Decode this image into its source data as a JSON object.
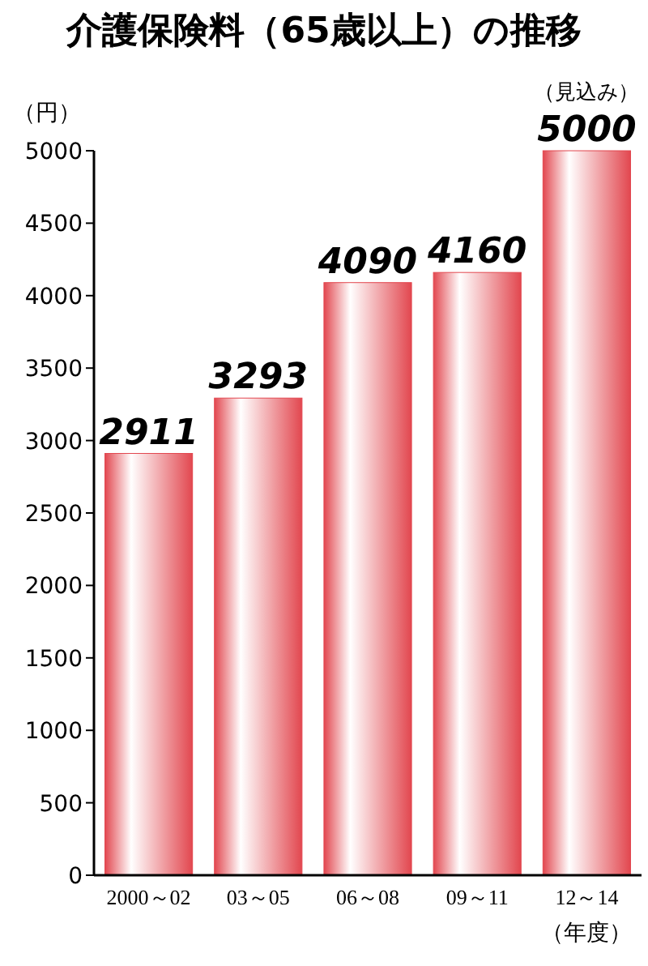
{
  "chart_data": {
    "type": "bar",
    "title": "介護保険料（65歳以上）の推移",
    "ylabel": "（円）",
    "xlabel": "（年度）",
    "annotations": [
      {
        "text": "（見込み）",
        "x": "12～14",
        "y": 5000
      }
    ],
    "categories": [
      "2000～02",
      "03～05",
      "06～08",
      "09～11",
      "12～14"
    ],
    "values": [
      2911,
      3293,
      4090,
      4160,
      5000
    ],
    "color": "#e2474f",
    "ylim": [
      0,
      5000
    ],
    "yticks": [
      0,
      500,
      1000,
      1500,
      2000,
      2500,
      3000,
      3500,
      4000,
      4500,
      5000
    ],
    "data_labels": true,
    "grid": false
  }
}
